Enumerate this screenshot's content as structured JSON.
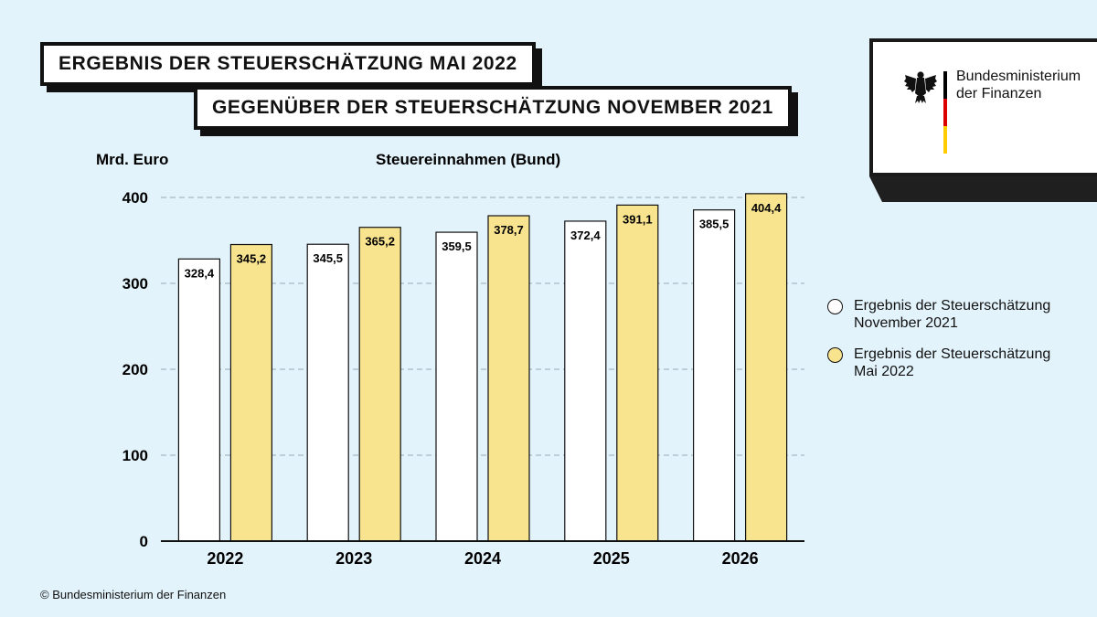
{
  "title_line1": "ERGEBNIS DER STEUERSCHÄTZUNG MAI 2022",
  "title_line2": "GEGENÜBER DER STEUERSCHÄTZUNG NOVEMBER 2021",
  "logo": {
    "line1": "Bundesministerium",
    "line2": "der Finanzen",
    "flag_colors": [
      "#000000",
      "#dd0000",
      "#ffcc00"
    ],
    "icon": "federal-eagle-icon"
  },
  "copyright": "© Bundesministerium der Finanzen",
  "chart_data": {
    "type": "bar",
    "title": "Steuereinnahmen (Bund)",
    "ylabel": "Mrd. Euro",
    "xlabel": "",
    "categories": [
      "2022",
      "2023",
      "2024",
      "2025",
      "2026"
    ],
    "series": [
      {
        "name": "Ergebnis der Steuerschätzung November 2021",
        "color": "#ffffff",
        "values": [
          328.4,
          345.5,
          359.5,
          372.4,
          385.5
        ],
        "labels": [
          "328,4",
          "345,5",
          "359,5",
          "372,4",
          "385,5"
        ]
      },
      {
        "name": "Ergebnis der Steuerschätzung Mai 2022",
        "color": "#f8e38f",
        "values": [
          345.2,
          365.2,
          378.7,
          391.1,
          404.4
        ],
        "labels": [
          "345,2",
          "365,2",
          "378,7",
          "391,1",
          "404,4"
        ]
      }
    ],
    "ylim": [
      0,
      400
    ],
    "yticks": [
      0,
      100,
      200,
      300,
      400
    ],
    "grid": true,
    "legend_position": "right"
  }
}
